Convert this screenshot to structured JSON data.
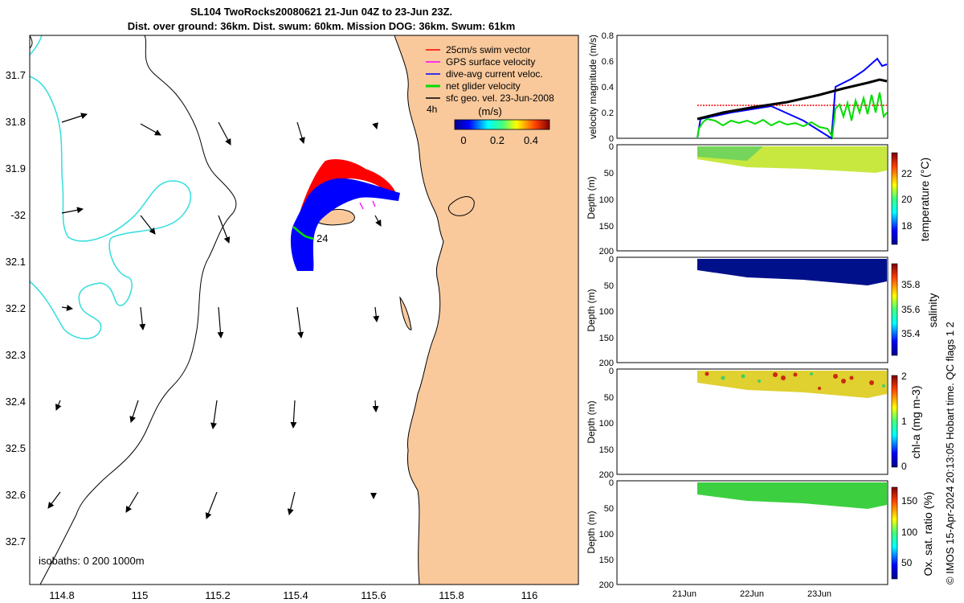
{
  "title": {
    "line1": "SL104 TwoRocks20080621 21-Jun 04Z to 23-Jun 23Z.",
    "line2": "Dist. over ground: 36km. Dist. swum: 60km. Mission DOG: 36km. Swum: 61km"
  },
  "map": {
    "lat_ticks": [
      "31.7",
      "31.8",
      "31.9",
      "-32",
      "32.1",
      "32.2",
      "32.3",
      "32.4",
      "32.5",
      "32.6",
      "32.7"
    ],
    "lon_ticks": [
      "114.8",
      "115",
      "115.2",
      "115.4",
      "115.6",
      "115.8",
      "116"
    ],
    "legend": [
      {
        "label": "25cm/s swim vector",
        "color": "#ff0000"
      },
      {
        "label": "GPS surface velocity",
        "color": "#ff00ff"
      },
      {
        "label": "dive-avg current veloc.",
        "color": "#0000ff"
      },
      {
        "label": "net glider velocity",
        "color": "#00dd00"
      },
      {
        "label": "sfc geo. vel. 23-Jun-2008",
        "color": "#000000"
      }
    ],
    "time_label": "4h",
    "colorbar": {
      "label": "(m/s)",
      "ticks": [
        "0",
        "0.2",
        "0.4"
      ]
    },
    "track_end_label": "24",
    "isobaths": "isobaths: 0   200  1000m",
    "land_color": "#f9c99c",
    "shelf_color": "#33dddd"
  },
  "panels": {
    "velocity": {
      "ylabel": "velocity magnitude (m/s)",
      "ticks": [
        "0",
        "0.2",
        "0.4",
        "0.6",
        "0.8"
      ]
    },
    "depth_ticks": [
      "0",
      "50",
      "100",
      "150",
      "200"
    ],
    "depth_label": "Depth (m)",
    "temperature": {
      "label": "temperature (°C)",
      "ticks": [
        "18",
        "20",
        "22"
      ]
    },
    "salinity": {
      "label": "salinity",
      "ticks": [
        "35.4",
        "35.6",
        "35.8"
      ]
    },
    "chla": {
      "label": "chl-a (mg m-3)",
      "ticks": [
        "0",
        "1",
        "2"
      ]
    },
    "oxygen": {
      "label": "Ox. sat. ratio (%)",
      "ticks": [
        "50",
        "100",
        "150"
      ]
    },
    "x_ticks": [
      "21Jun",
      "22Jun",
      "23Jun"
    ]
  },
  "footer": "© IMOS 15-Apr-2024 20:13:05 Hobart time. QC flags 1  2"
}
